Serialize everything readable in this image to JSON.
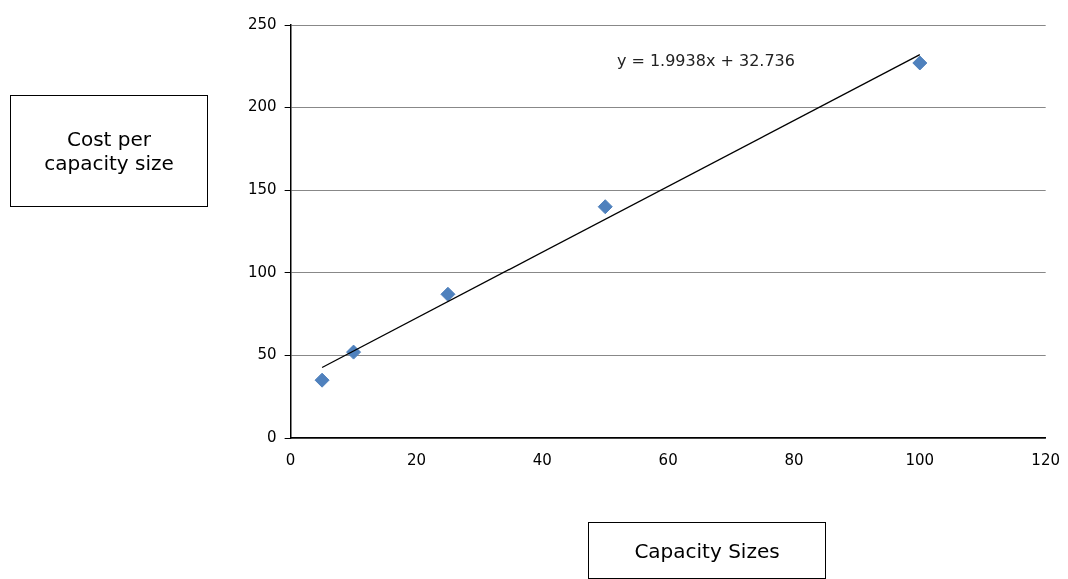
{
  "chart_data": {
    "type": "scatter",
    "xlabel": "Capacity Sizes",
    "ylabel": "Cost per capacity size",
    "series": [
      {
        "type": "scatter",
        "color": "#4f81bd",
        "marker": "diamond",
        "x": [
          5,
          10,
          25,
          50,
          100
        ],
        "values": [
          35,
          52,
          87,
          140,
          227
        ]
      },
      {
        "type": "line",
        "color": "#000000",
        "marker": "none",
        "x": [
          5,
          100
        ],
        "values": [
          42.7,
          232.1
        ]
      }
    ],
    "annotations": [
      "y = 1.9938x + 32.736"
    ],
    "xlim": [
      0,
      120
    ],
    "xticks": [
      0,
      20,
      40,
      60,
      80,
      100,
      120
    ],
    "ylim": [
      0,
      250
    ],
    "yticks": [
      0,
      50,
      100,
      150,
      200,
      250
    ],
    "grid": "y",
    "legend": false
  }
}
